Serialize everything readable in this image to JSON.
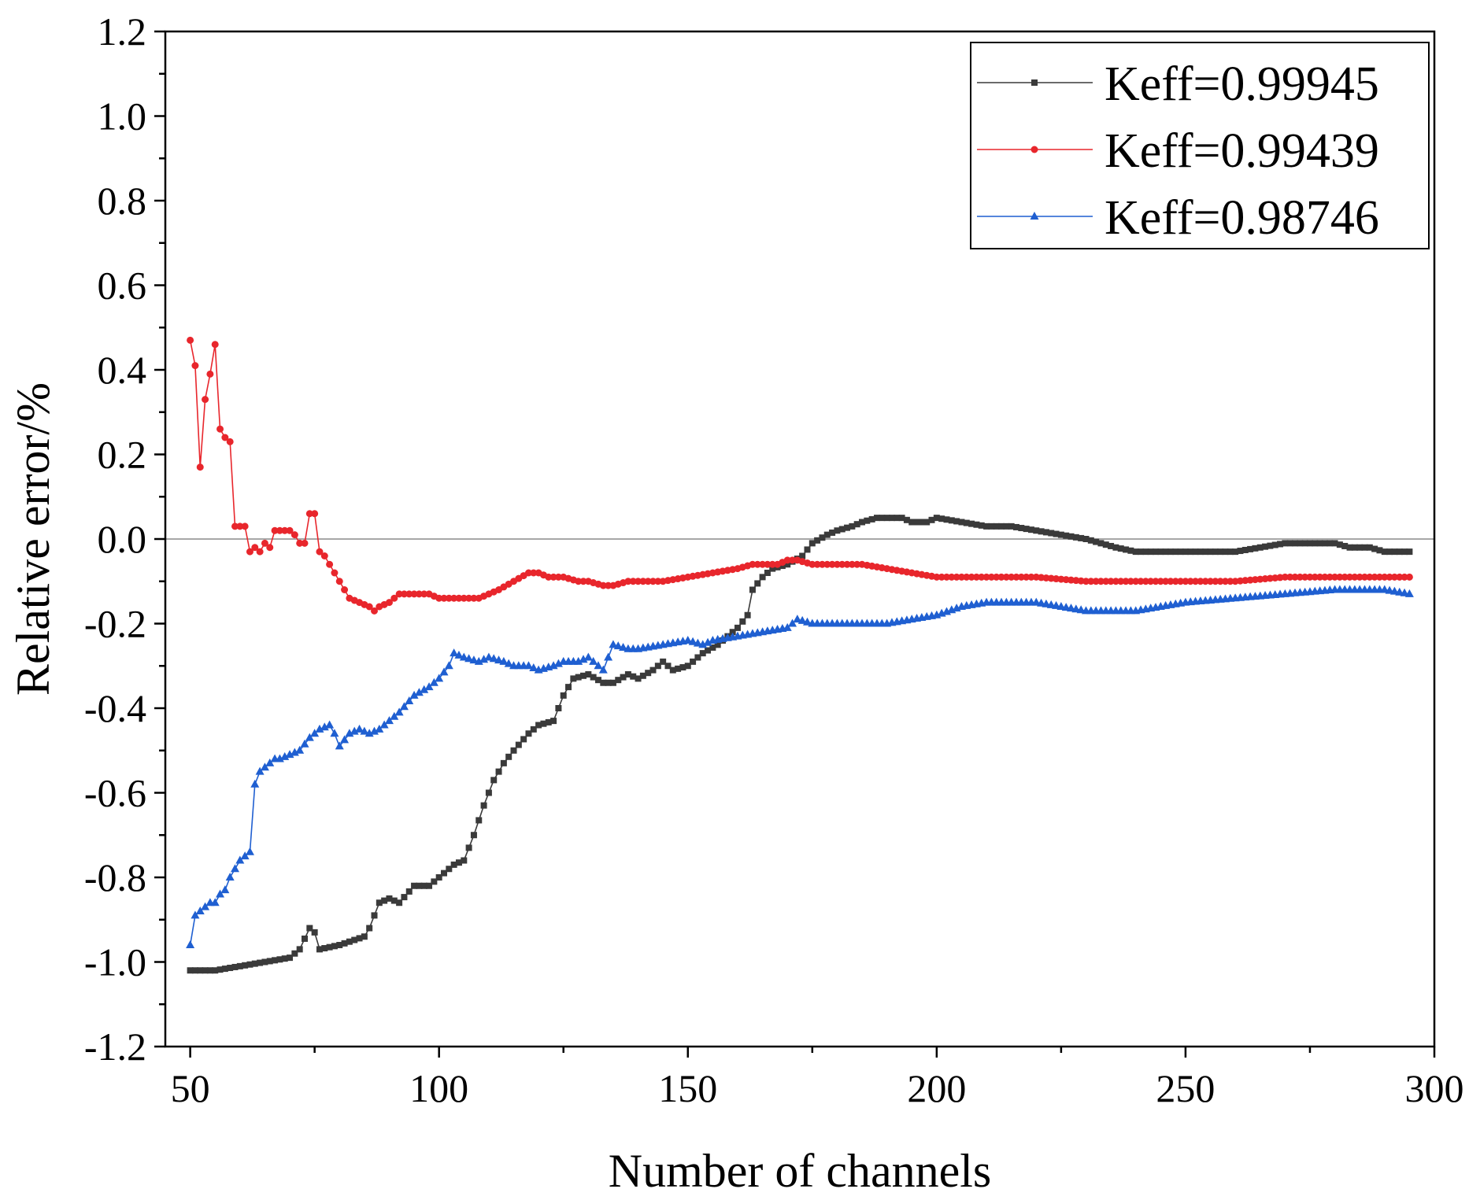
{
  "chart_data": {
    "type": "line",
    "title": "",
    "xlabel": "Number of channels",
    "ylabel": "Relative error/%",
    "xlim": [
      45,
      300
    ],
    "ylim": [
      -1.2,
      1.2
    ],
    "xticks": [
      50,
      100,
      150,
      200,
      250,
      300
    ],
    "xtick_labels": [
      "50",
      "100",
      "150",
      "200",
      "250",
      "300"
    ],
    "yticks": [
      -1.2,
      -1.0,
      -0.8,
      -0.6,
      -0.4,
      -0.2,
      0.0,
      0.2,
      0.4,
      0.6,
      0.8,
      1.0,
      1.2
    ],
    "ytick_labels": [
      "-1.2",
      "-1.0",
      "-0.8",
      "-0.6",
      "-0.4",
      "-0.2",
      "0.0",
      "0.2",
      "0.4",
      "0.6",
      "0.8",
      "1.0",
      "1.2"
    ],
    "reference_line_y": 0.0,
    "grid": false,
    "legend_position": "top-right",
    "series": [
      {
        "name": "Keff=0.99945",
        "color": "#3a3a3a",
        "marker": "square",
        "x": [
          50,
          55,
          60,
          65,
          70,
          72,
          74,
          75,
          76,
          80,
          85,
          86,
          88,
          90,
          92,
          95,
          98,
          100,
          103,
          105,
          107,
          109,
          111,
          113,
          115,
          118,
          120,
          123,
          125,
          127,
          130,
          133,
          135,
          138,
          140,
          143,
          145,
          147,
          150,
          153,
          156,
          158,
          160,
          162,
          163,
          165,
          167,
          170,
          173,
          175,
          178,
          180,
          183,
          185,
          188,
          190,
          193,
          195,
          198,
          200,
          205,
          210,
          215,
          220,
          225,
          230,
          233,
          236,
          240,
          245,
          250,
          255,
          260,
          265,
          270,
          275,
          280,
          283,
          287,
          290,
          295
        ],
        "values": [
          -1.02,
          -1.02,
          -1.01,
          -1.0,
          -0.99,
          -0.97,
          -0.92,
          -0.93,
          -0.97,
          -0.96,
          -0.94,
          -0.92,
          -0.86,
          -0.85,
          -0.86,
          -0.82,
          -0.82,
          -0.8,
          -0.77,
          -0.76,
          -0.7,
          -0.63,
          -0.57,
          -0.53,
          -0.5,
          -0.46,
          -0.44,
          -0.43,
          -0.37,
          -0.33,
          -0.32,
          -0.34,
          -0.34,
          -0.32,
          -0.33,
          -0.31,
          -0.29,
          -0.31,
          -0.3,
          -0.27,
          -0.25,
          -0.23,
          -0.21,
          -0.18,
          -0.12,
          -0.09,
          -0.07,
          -0.06,
          -0.04,
          -0.01,
          0.01,
          0.02,
          0.03,
          0.04,
          0.05,
          0.05,
          0.05,
          0.04,
          0.04,
          0.05,
          0.04,
          0.03,
          0.03,
          0.02,
          0.01,
          0.0,
          -0.01,
          -0.02,
          -0.03,
          -0.03,
          -0.03,
          -0.03,
          -0.03,
          -0.02,
          -0.01,
          -0.01,
          -0.01,
          -0.02,
          -0.02,
          -0.03,
          -0.03
        ]
      },
      {
        "name": "Keff=0.99439",
        "color": "#e8262c",
        "marker": "circle",
        "x": [
          50,
          51,
          52,
          53,
          54,
          55,
          56,
          57,
          58,
          59,
          60,
          61,
          62,
          63,
          64,
          65,
          66,
          67,
          68,
          69,
          70,
          71,
          72,
          73,
          74,
          75,
          76,
          77,
          78,
          79,
          80,
          82,
          84,
          86,
          87,
          88,
          90,
          92,
          95,
          98,
          100,
          103,
          105,
          108,
          110,
          112,
          115,
          118,
          120,
          122,
          125,
          128,
          130,
          133,
          135,
          138,
          140,
          145,
          150,
          155,
          160,
          163,
          165,
          168,
          170,
          172,
          175,
          180,
          185,
          190,
          195,
          200,
          205,
          210,
          220,
          230,
          240,
          250,
          260,
          270,
          280,
          290,
          295
        ],
        "values": [
          0.47,
          0.41,
          0.17,
          0.33,
          0.39,
          0.46,
          0.26,
          0.24,
          0.23,
          0.03,
          0.03,
          0.03,
          -0.03,
          -0.02,
          -0.03,
          -0.01,
          -0.02,
          0.02,
          0.02,
          0.02,
          0.02,
          0.01,
          -0.01,
          -0.01,
          0.06,
          0.06,
          -0.03,
          -0.04,
          -0.06,
          -0.08,
          -0.1,
          -0.14,
          -0.15,
          -0.16,
          -0.17,
          -0.16,
          -0.15,
          -0.13,
          -0.13,
          -0.13,
          -0.14,
          -0.14,
          -0.14,
          -0.14,
          -0.13,
          -0.12,
          -0.1,
          -0.08,
          -0.08,
          -0.09,
          -0.09,
          -0.1,
          -0.1,
          -0.11,
          -0.11,
          -0.1,
          -0.1,
          -0.1,
          -0.09,
          -0.08,
          -0.07,
          -0.06,
          -0.06,
          -0.06,
          -0.05,
          -0.05,
          -0.06,
          -0.06,
          -0.06,
          -0.07,
          -0.08,
          -0.09,
          -0.09,
          -0.09,
          -0.09,
          -0.1,
          -0.1,
          -0.1,
          -0.1,
          -0.09,
          -0.09,
          -0.09,
          -0.09
        ]
      },
      {
        "name": "Keff=0.98746",
        "color": "#1f5fd1",
        "marker": "triangle",
        "x": [
          50,
          51,
          52,
          53,
          54,
          55,
          56,
          57,
          58,
          59,
          60,
          61,
          62,
          63,
          64,
          65,
          66,
          67,
          68,
          70,
          72,
          74,
          76,
          78,
          79,
          80,
          82,
          84,
          86,
          88,
          90,
          92,
          95,
          98,
          100,
          102,
          103,
          105,
          108,
          110,
          113,
          115,
          118,
          120,
          123,
          125,
          128,
          130,
          133,
          135,
          138,
          140,
          145,
          150,
          153,
          155,
          160,
          165,
          170,
          172,
          175,
          180,
          185,
          190,
          195,
          200,
          205,
          210,
          220,
          225,
          230,
          240,
          250,
          260,
          270,
          280,
          290,
          295
        ],
        "values": [
          -0.96,
          -0.89,
          -0.88,
          -0.87,
          -0.86,
          -0.86,
          -0.84,
          -0.83,
          -0.8,
          -0.78,
          -0.76,
          -0.75,
          -0.74,
          -0.58,
          -0.55,
          -0.54,
          -0.53,
          -0.52,
          -0.52,
          -0.51,
          -0.5,
          -0.47,
          -0.45,
          -0.44,
          -0.46,
          -0.49,
          -0.46,
          -0.45,
          -0.46,
          -0.45,
          -0.43,
          -0.41,
          -0.37,
          -0.35,
          -0.33,
          -0.3,
          -0.27,
          -0.28,
          -0.29,
          -0.28,
          -0.29,
          -0.3,
          -0.3,
          -0.31,
          -0.3,
          -0.29,
          -0.29,
          -0.28,
          -0.31,
          -0.25,
          -0.26,
          -0.26,
          -0.25,
          -0.24,
          -0.25,
          -0.24,
          -0.23,
          -0.22,
          -0.21,
          -0.19,
          -0.2,
          -0.2,
          -0.2,
          -0.2,
          -0.19,
          -0.18,
          -0.16,
          -0.15,
          -0.15,
          -0.16,
          -0.17,
          -0.17,
          -0.15,
          -0.14,
          -0.13,
          -0.12,
          -0.12,
          -0.13
        ]
      }
    ]
  }
}
